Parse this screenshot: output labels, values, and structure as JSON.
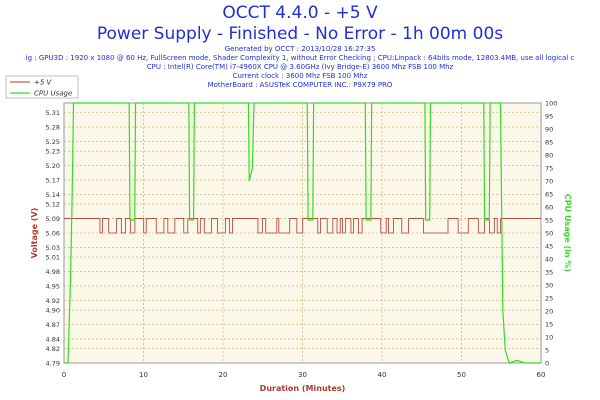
{
  "header": {
    "title": "OCCT 4.4.0 - +5 V",
    "subtitle": "Power Supply - Finished - No Error - 1h 00m 00s",
    "info_lines": [
      "Generated by OCCT : 2013/10/28 16:27:35",
      "ig : GPU3D : 1920 x 1080 @ 60 Hz, FullScreen mode, Shader Complexity 1, without Error Checking ; CPU:Linpack : 64bits mode, 12803.4MB, use all logical c",
      "CPU : Intel(R) Core(TM) i7-4960X CPU @ 3.60GHz (Ivy Bridge-E) 3600 Mhz FSB 100 Mhz",
      "Current clock : 3600 Mhz FSB 100 Mhz",
      "MotherBoard : ASUSTeK COMPUTER INC.: P9X79 PRO"
    ]
  },
  "colors": {
    "title": "#1f2fd6",
    "voltage": "#b03a2e",
    "cpu": "#33dd22",
    "plot_bg": "#fbf8ea",
    "grid": "#c9a45c"
  },
  "chart_data": {
    "type": "line",
    "title": "OCCT 4.4.0 - +5 V",
    "xlabel": "Duration (Minutes)",
    "ylabel": "Voltage (V)",
    "y2label": "CPU Usage (in %)",
    "xlim": [
      0,
      60
    ],
    "ylim": [
      4.79,
      5.33
    ],
    "y2lim": [
      0,
      100
    ],
    "x_ticks": [
      "0",
      "10",
      "20",
      "30",
      "40",
      "50",
      "60"
    ],
    "y_ticks": [
      "4.79",
      "4.82",
      "4.84",
      "4.87",
      "4.90",
      "4.92",
      "4.95",
      "4.98",
      "5.01",
      "5.03",
      "5.06",
      "5.09",
      "5.12",
      "5.14",
      "5.17",
      "5.20",
      "5.23",
      "5.25",
      "5.28",
      "5.31"
    ],
    "y2_ticks": [
      "0",
      "5",
      "10",
      "15",
      "20",
      "25",
      "30",
      "35",
      "40",
      "45",
      "50",
      "55",
      "60",
      "65",
      "70",
      "75",
      "80",
      "85",
      "90",
      "95",
      "100"
    ],
    "grid": true,
    "legend_position": "top-left",
    "series": [
      {
        "name": "+5 V",
        "axis": "left",
        "note": "fluctuates between the two readings",
        "low": 5.06,
        "high": 5.09,
        "points": [
          [
            0,
            5.09
          ],
          [
            1,
            5.09
          ],
          [
            2,
            5.09
          ],
          [
            3,
            5.09
          ],
          [
            4,
            5.06
          ],
          [
            5,
            5.09
          ],
          [
            8,
            5.09
          ],
          [
            12,
            5.06
          ],
          [
            16,
            5.09
          ],
          [
            20,
            5.06
          ],
          [
            24,
            5.09
          ],
          [
            28,
            5.06
          ],
          [
            32,
            5.06
          ],
          [
            36,
            5.09
          ],
          [
            40,
            5.06
          ],
          [
            44,
            5.09
          ],
          [
            48,
            5.06
          ],
          [
            52,
            5.09
          ],
          [
            55,
            5.09
          ],
          [
            56,
            5.09
          ],
          [
            60,
            5.09
          ]
        ]
      },
      {
        "name": "CPU Usage",
        "axis": "right",
        "points": [
          [
            0,
            0
          ],
          [
            0.5,
            0
          ],
          [
            0.8,
            30
          ],
          [
            1.0,
            60
          ],
          [
            1.2,
            100
          ],
          [
            8.2,
            100
          ],
          [
            8.3,
            55
          ],
          [
            8.9,
            55
          ],
          [
            9.0,
            100
          ],
          [
            15.7,
            100
          ],
          [
            15.8,
            55
          ],
          [
            16.3,
            55
          ],
          [
            16.4,
            100
          ],
          [
            23.2,
            100
          ],
          [
            23.3,
            70
          ],
          [
            23.7,
            75
          ],
          [
            23.9,
            100
          ],
          [
            30.6,
            100
          ],
          [
            30.7,
            55
          ],
          [
            31.3,
            55
          ],
          [
            31.4,
            100
          ],
          [
            37.9,
            100
          ],
          [
            38.0,
            55
          ],
          [
            38.6,
            55
          ],
          [
            38.7,
            100
          ],
          [
            45.4,
            100
          ],
          [
            45.5,
            55
          ],
          [
            46.0,
            55
          ],
          [
            46.1,
            100
          ],
          [
            52.8,
            100
          ],
          [
            52.9,
            55
          ],
          [
            53.5,
            55
          ],
          [
            53.6,
            100
          ],
          [
            54.9,
            100
          ],
          [
            55.2,
            20
          ],
          [
            55.5,
            5
          ],
          [
            56.0,
            0
          ],
          [
            57.0,
            1
          ],
          [
            58.0,
            0
          ],
          [
            60,
            0
          ]
        ]
      }
    ]
  }
}
